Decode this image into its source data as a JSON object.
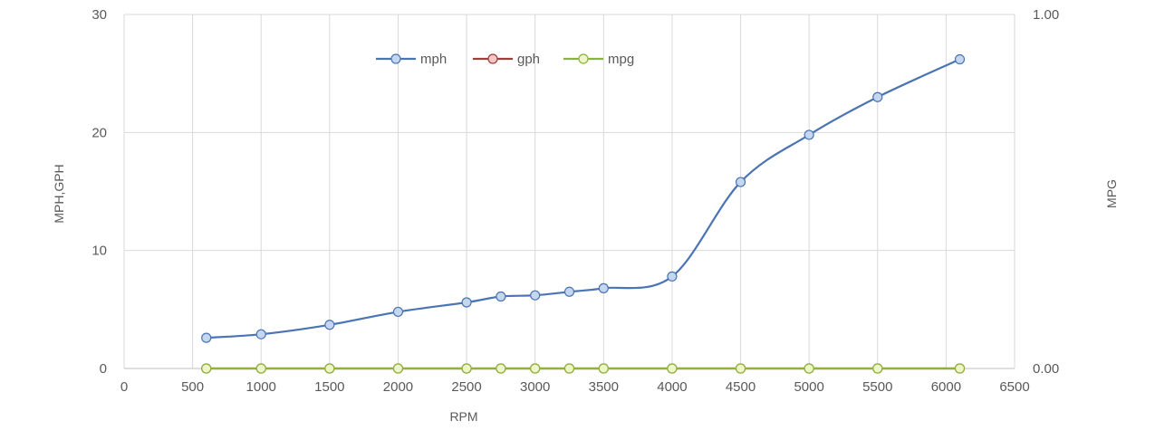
{
  "chart_data": {
    "type": "line",
    "xlabel": "RPM",
    "ylabel": "MPH,GPH",
    "y2label": "MPG",
    "xlim": [
      0,
      6500
    ],
    "ylim": [
      0,
      30
    ],
    "y2lim": [
      0,
      1
    ],
    "xticks": [
      "0",
      "500",
      "1000",
      "1500",
      "2000",
      "2500",
      "3000",
      "3500",
      "4000",
      "4500",
      "5000",
      "5500",
      "6000",
      "6500"
    ],
    "yticks": [
      "0",
      "10",
      "20",
      "30"
    ],
    "y2ticks": [
      "0.00",
      "1.00"
    ],
    "grid": "vertical and horizontal",
    "legend": "top-center",
    "x": [
      600,
      1000,
      1500,
      2000,
      2500,
      2750,
      3000,
      3250,
      3500,
      4000,
      4500,
      5000,
      5500,
      6100
    ],
    "series": [
      {
        "name": "mph",
        "axis": "left",
        "color": "#4a74b4",
        "marker_fill": "#c5d6ef",
        "values": [
          2.6,
          2.9,
          3.7,
          4.8,
          5.6,
          6.1,
          6.2,
          6.5,
          6.8,
          7.8,
          15.8,
          19.8,
          23.0,
          26.2
        ]
      },
      {
        "name": "gph",
        "axis": "left",
        "color": "#a23b3b",
        "marker_fill": "#f0c8c8",
        "values": [
          0,
          0,
          0,
          0,
          0,
          0,
          0,
          0,
          0,
          0,
          0,
          0,
          0,
          0
        ]
      },
      {
        "name": "mpg",
        "axis": "right",
        "color": "#8cb33a",
        "marker_fill": "#eef5c8",
        "values": [
          0,
          0,
          0,
          0,
          0,
          0,
          0,
          0,
          0,
          0,
          0,
          0,
          0,
          0
        ]
      }
    ]
  }
}
